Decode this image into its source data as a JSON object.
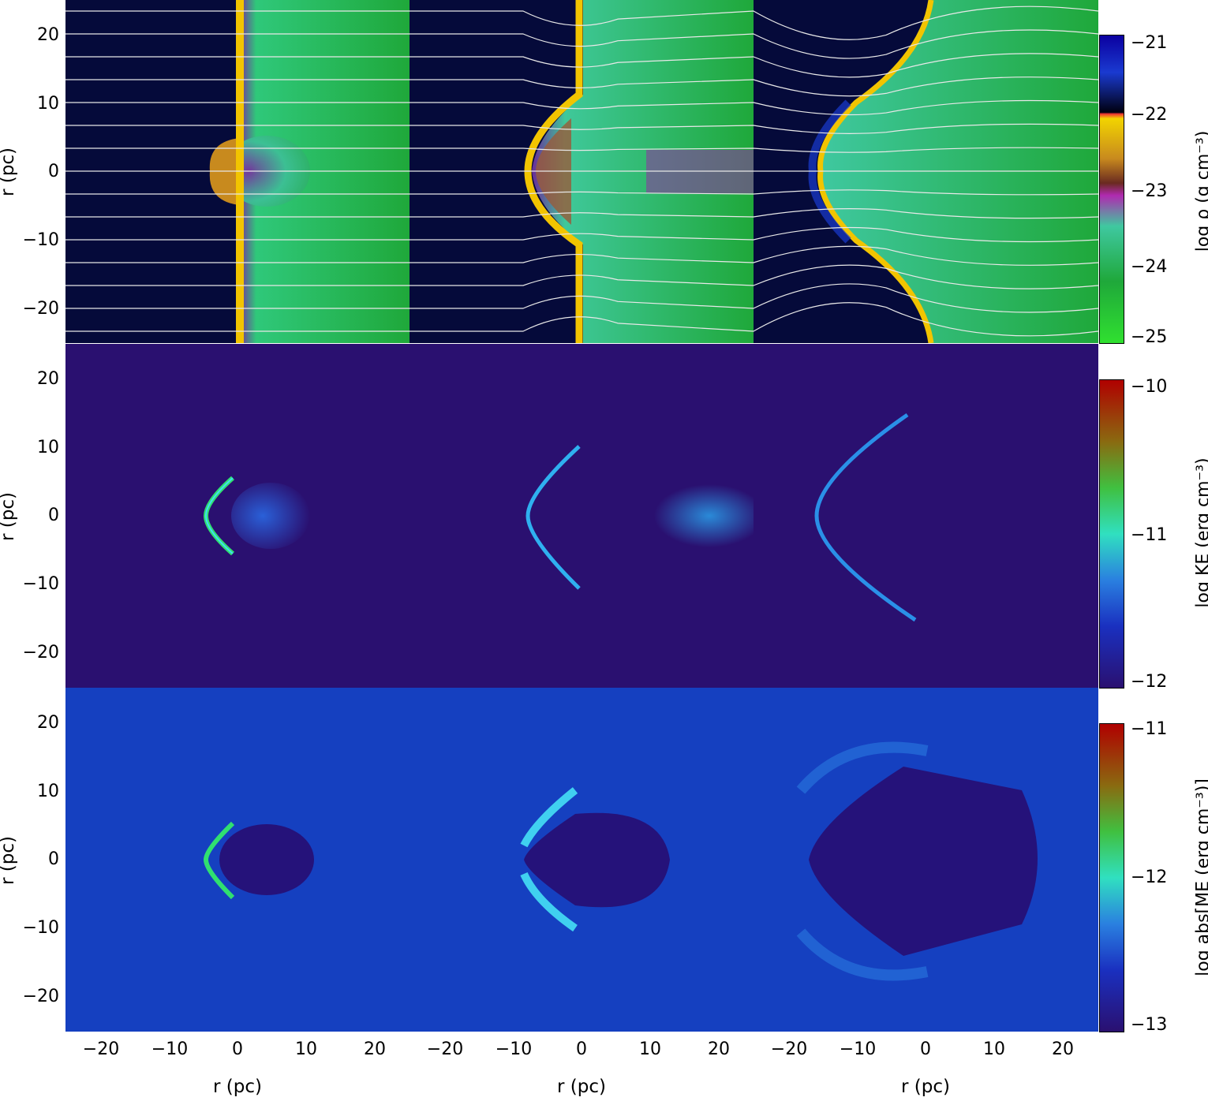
{
  "axes": {
    "y_label": "r (pc)",
    "x_label": "r (pc)",
    "y_ticks": [
      "20",
      "10",
      "0",
      "−10",
      "−20"
    ],
    "x_ticks": [
      "−20",
      "−10",
      "0",
      "10",
      "20"
    ]
  },
  "colorbars": [
    {
      "label": "log ρ (g cm⁻³)",
      "ticks": [
        "−21",
        "−22",
        "−23",
        "−24",
        "−25"
      ]
    },
    {
      "label": "log KE (erg cm⁻³)",
      "ticks": [
        "−10",
        "−11",
        "−12"
      ]
    },
    {
      "label": "log abs[ME (erg cm⁻³)]",
      "ticks": [
        "−11",
        "−12",
        "−13"
      ]
    }
  ],
  "colors": {
    "density_bg_left": "#050a3a",
    "density_bg_right": "#1fae3a",
    "ke_bg": "#2a1070",
    "me_bg": "#1540c0",
    "shell": "#f2c400"
  }
}
